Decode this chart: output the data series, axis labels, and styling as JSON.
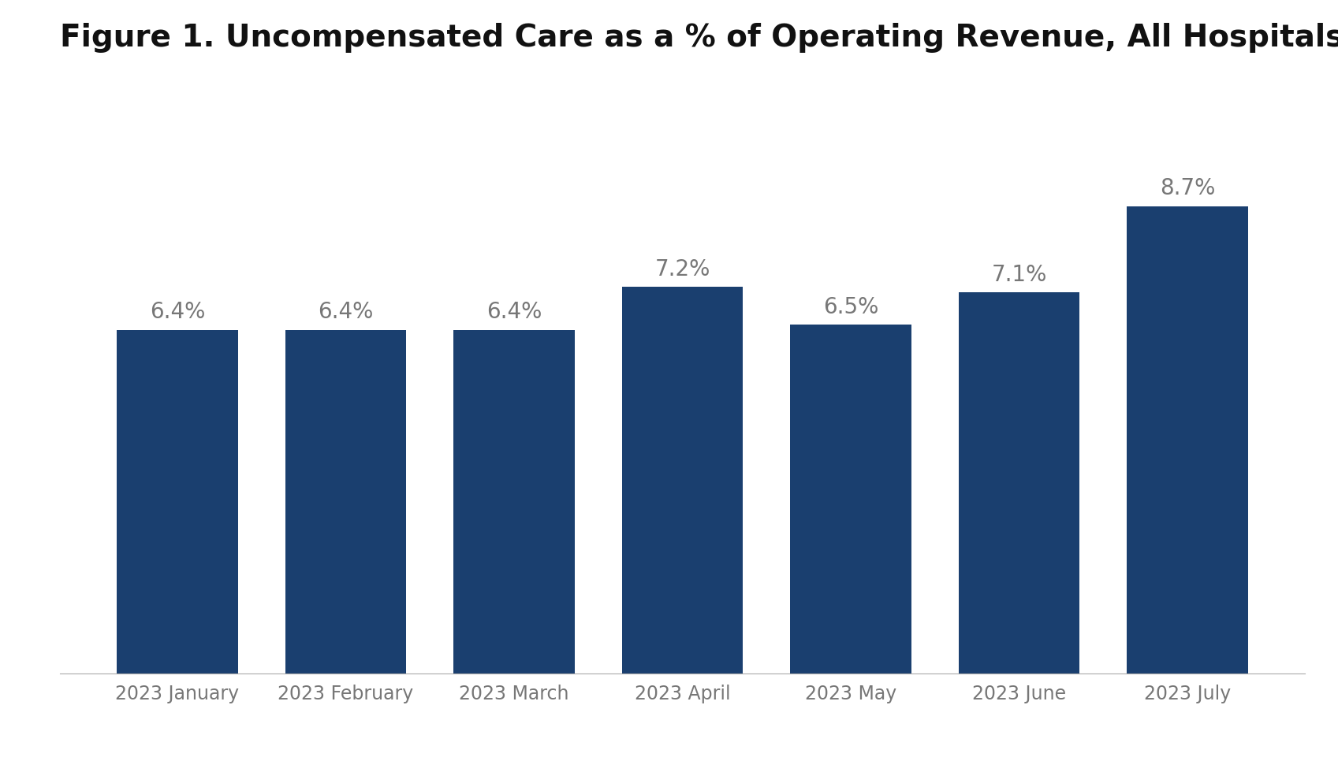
{
  "title": "Figure 1. Uncompensated Care as a % of Operating Revenue, All Hospitals",
  "categories": [
    "2023 January",
    "2023 February",
    "2023 March",
    "2023 April",
    "2023 May",
    "2023 June",
    "2023 July"
  ],
  "values": [
    6.4,
    6.4,
    6.4,
    7.2,
    6.5,
    7.1,
    8.7
  ],
  "labels": [
    "6.4%",
    "6.4%",
    "6.4%",
    "7.2%",
    "6.5%",
    "7.1%",
    "8.7%"
  ],
  "bar_color": "#1a3f6f",
  "label_color": "#777777",
  "background_color": "#ffffff",
  "title_fontsize": 28,
  "label_fontsize": 20,
  "tick_fontsize": 17,
  "ylim": [
    0,
    10.0
  ],
  "bar_width": 0.72
}
